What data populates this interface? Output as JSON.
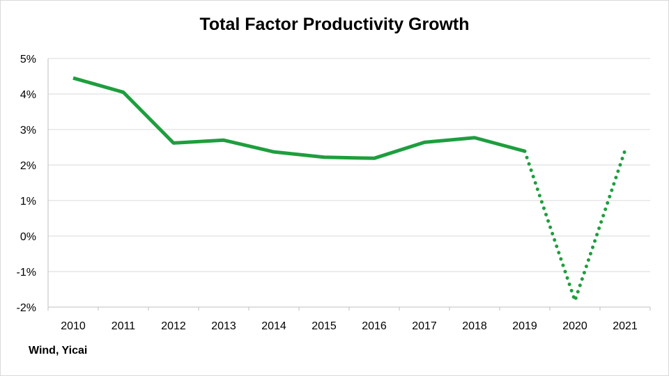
{
  "chart_data": {
    "type": "line",
    "title": "Total Factor Productivity Growth",
    "source": "Wind, Yicai",
    "x": [
      "2010",
      "2011",
      "2012",
      "2013",
      "2014",
      "2015",
      "2016",
      "2017",
      "2018",
      "2019",
      "2020",
      "2021"
    ],
    "ylim": [
      -2,
      5
    ],
    "yticks": [
      -2,
      -1,
      0,
      1,
      2,
      3,
      4,
      5
    ],
    "ytick_labels": [
      "-2%",
      "-1%",
      "0%",
      "1%",
      "2%",
      "3%",
      "4%",
      "5%"
    ],
    "xlabel": "",
    "ylabel": "",
    "grid": true,
    "legend": "none",
    "series": [
      {
        "values": [
          4.45,
          4.05,
          2.62,
          2.7,
          2.37,
          2.22,
          2.19,
          2.64,
          2.77,
          2.39,
          null,
          null
        ],
        "style": "solid",
        "color": "#1e9e3e"
      },
      {
        "values": [
          null,
          null,
          null,
          null,
          null,
          null,
          null,
          null,
          null,
          2.39,
          -1.82,
          2.42
        ],
        "style": "dotted",
        "color": "#1e9e3e"
      }
    ],
    "colors": {
      "line": "#1e9e3e",
      "grid": "#d9d9d9",
      "axis": "#bfbfbf"
    }
  }
}
